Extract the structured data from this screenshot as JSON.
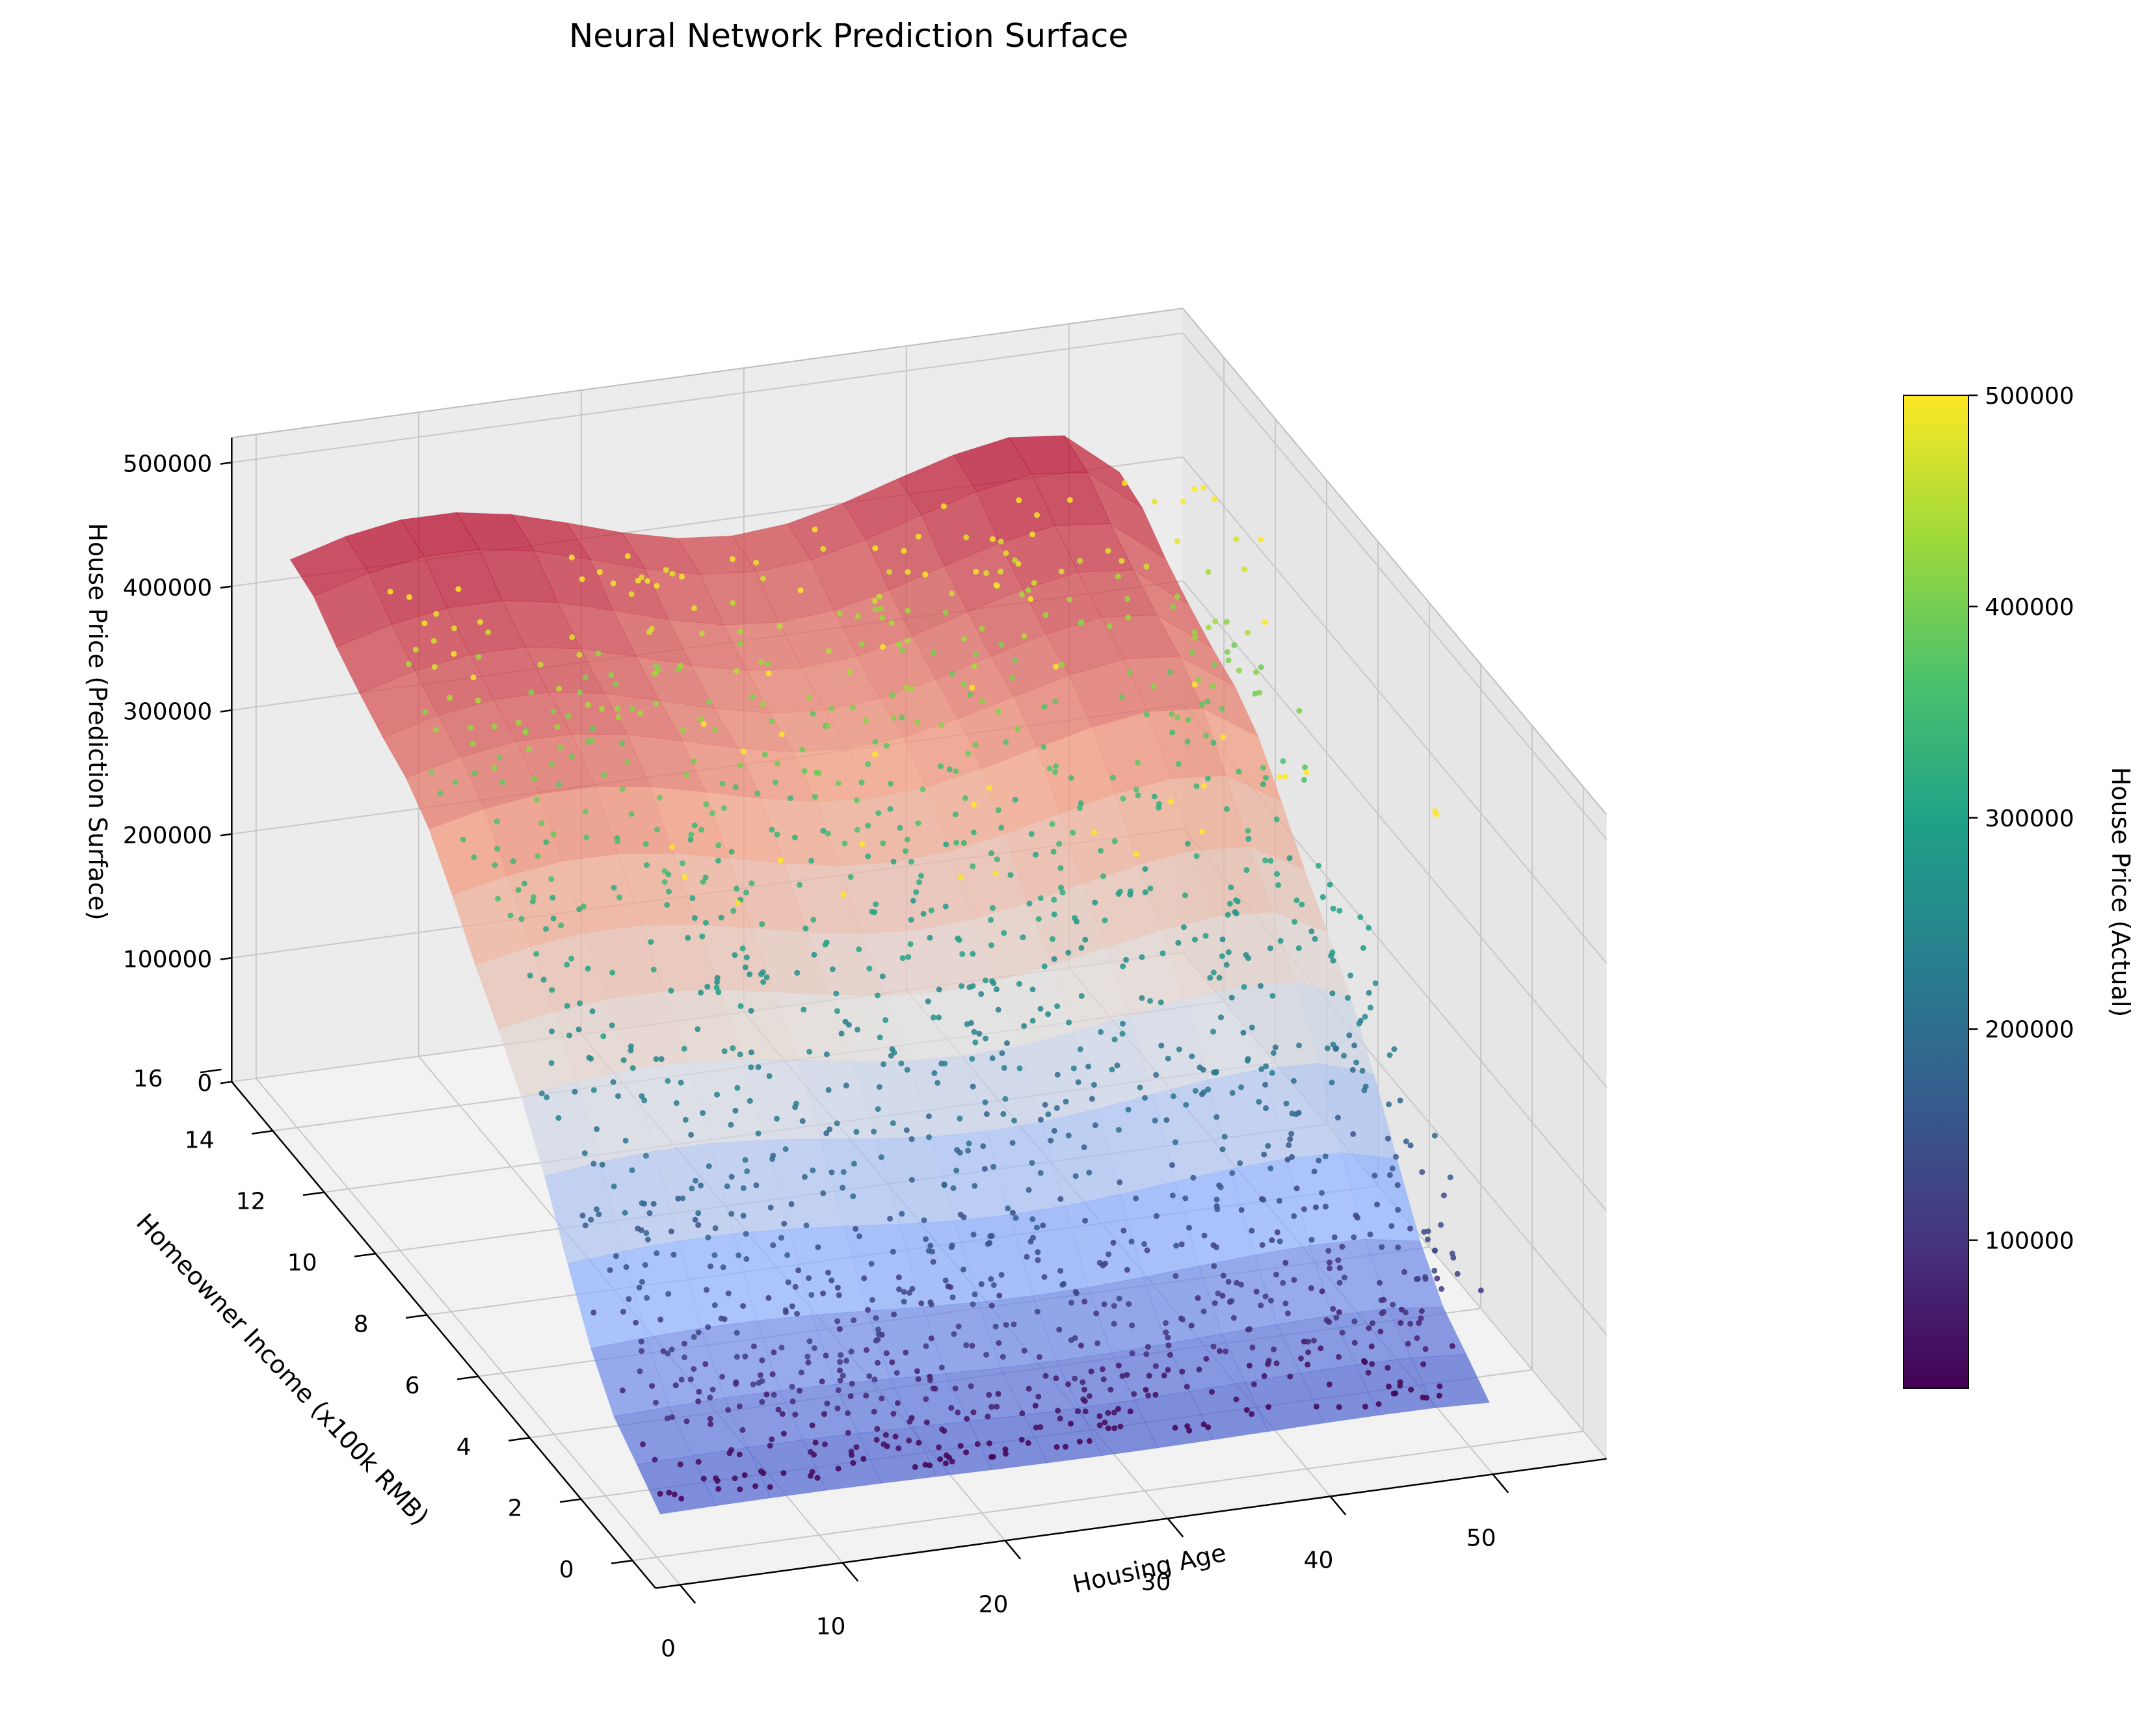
{
  "chart_data": {
    "type": "surface3d",
    "title": "Neural Network Prediction Surface",
    "x_axis": {
      "label": "Housing Age",
      "ticks": [
        0,
        10,
        20,
        30,
        40,
        50
      ],
      "range": [
        0,
        52
      ]
    },
    "y_axis": {
      "label": "Homeowner Income (x100k RMB)",
      "ticks": [
        0,
        2,
        4,
        6,
        8,
        10,
        12,
        14,
        16
      ],
      "range": [
        0,
        15
      ]
    },
    "z_axis": {
      "label": "House Price (Prediction Surface)",
      "ticks": [
        0,
        100000,
        200000,
        300000,
        400000,
        500000
      ],
      "range": [
        0,
        520000
      ]
    },
    "surface": {
      "colormap": "coolwarm",
      "income_grid": [
        0.5,
        1.5,
        2.5,
        3.5,
        4.5,
        5.5,
        6.5,
        8,
        10,
        12,
        15
      ],
      "prediction_by_income": [
        20000,
        40000,
        60000,
        100000,
        150000,
        200000,
        250000,
        300000,
        350000,
        400000,
        420000
      ]
    },
    "scatter": {
      "colormap": "viridis",
      "description_count": 1500,
      "value_range": [
        30000,
        500000
      ]
    },
    "colorbar": {
      "label": "House Price (Actual)",
      "ticks": [
        100000,
        200000,
        300000,
        400000,
        500000
      ],
      "range": [
        30000,
        500000
      ]
    }
  }
}
